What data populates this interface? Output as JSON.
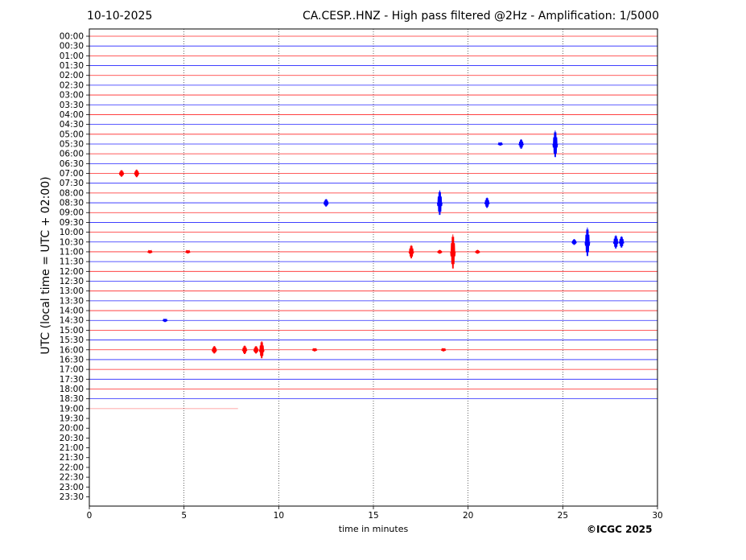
{
  "header": {
    "date": "10-10-2025",
    "title": "CA.CESP..HNZ - High pass filtered @2Hz - Amplification: 1/5000"
  },
  "footer": {
    "copyright": "©ICGC 2025"
  },
  "chart_data": {
    "type": "line",
    "title": "CA.CESP..HNZ - High pass filtered @2Hz - Amplification: 1/5000",
    "xlabel": "time in minutes",
    "ylabel": "UTC (local time = UTC + 02:00)",
    "xlim": [
      0,
      30
    ],
    "x_ticks": [
      0,
      5,
      10,
      15,
      20,
      25,
      30
    ],
    "grid": "vertical dotted lines every 5 minutes",
    "row_labels": [
      "00:00",
      "00:30",
      "01:00",
      "01:30",
      "02:00",
      "02:30",
      "03:00",
      "03:30",
      "04:00",
      "04:30",
      "05:00",
      "05:30",
      "06:00",
      "06:30",
      "07:00",
      "07:30",
      "08:00",
      "08:30",
      "09:00",
      "09:30",
      "10:00",
      "10:30",
      "11:00",
      "11:30",
      "12:00",
      "12:30",
      "13:00",
      "13:30",
      "14:00",
      "14:30",
      "15:00",
      "15:30",
      "16:00",
      "16:30",
      "17:00",
      "17:30",
      "18:00",
      "18:30",
      "19:00",
      "19:30",
      "20:00",
      "20:30",
      "21:00",
      "21:30",
      "22:00",
      "22:30",
      "23:00",
      "23:30"
    ],
    "colors": {
      "even_rows": "#ff0000",
      "odd_rows": "#0000ff"
    },
    "trace_end": {
      "row": "19:00",
      "minute": 7.85
    },
    "events": [
      {
        "row": "05:30",
        "minute": 21.7,
        "amplitude": 0.15
      },
      {
        "row": "05:30",
        "minute": 22.8,
        "amplitude": 0.5
      },
      {
        "row": "05:30",
        "minute": 24.6,
        "amplitude": 1.4
      },
      {
        "row": "07:00",
        "minute": 1.7,
        "amplitude": 0.35
      },
      {
        "row": "07:00",
        "minute": 2.5,
        "amplitude": 0.4
      },
      {
        "row": "08:30",
        "minute": 12.5,
        "amplitude": 0.4
      },
      {
        "row": "08:30",
        "minute": 18.5,
        "amplitude": 1.3
      },
      {
        "row": "08:30",
        "minute": 21.0,
        "amplitude": 0.55
      },
      {
        "row": "10:30",
        "minute": 25.6,
        "amplitude": 0.3
      },
      {
        "row": "10:30",
        "minute": 26.3,
        "amplitude": 1.5
      },
      {
        "row": "10:30",
        "minute": 27.8,
        "amplitude": 0.7
      },
      {
        "row": "10:30",
        "minute": 28.1,
        "amplitude": 0.6
      },
      {
        "row": "11:00",
        "minute": 3.2,
        "amplitude": 0.15
      },
      {
        "row": "11:00",
        "minute": 5.2,
        "amplitude": 0.15
      },
      {
        "row": "11:00",
        "minute": 17.0,
        "amplitude": 0.7
      },
      {
        "row": "11:00",
        "minute": 18.5,
        "amplitude": 0.2
      },
      {
        "row": "11:00",
        "minute": 19.2,
        "amplitude": 1.8
      },
      {
        "row": "11:00",
        "minute": 20.5,
        "amplitude": 0.2
      },
      {
        "row": "14:30",
        "minute": 4.0,
        "amplitude": 0.1
      },
      {
        "row": "16:00",
        "minute": 6.6,
        "amplitude": 0.4
      },
      {
        "row": "16:00",
        "minute": 8.2,
        "amplitude": 0.45
      },
      {
        "row": "16:00",
        "minute": 8.8,
        "amplitude": 0.4
      },
      {
        "row": "16:00",
        "minute": 9.1,
        "amplitude": 0.9
      },
      {
        "row": "16:00",
        "minute": 11.9,
        "amplitude": 0.15
      },
      {
        "row": "16:00",
        "minute": 18.7,
        "amplitude": 0.12
      }
    ]
  }
}
